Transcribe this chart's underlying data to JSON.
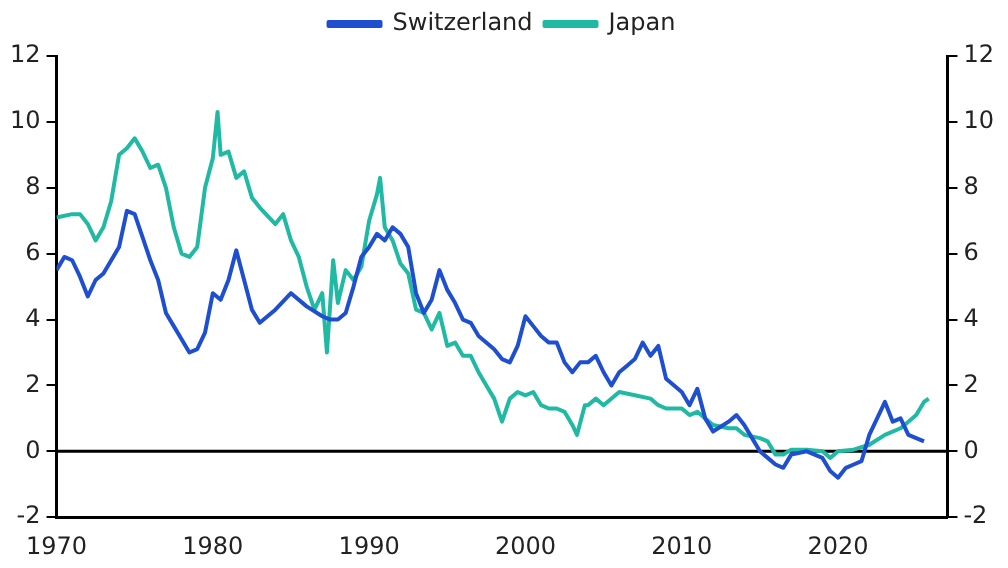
{
  "chart_data": {
    "type": "line",
    "legend": "top",
    "grid": false,
    "xlim": [
      1970,
      2027
    ],
    "xticks": [
      1970,
      1980,
      1990,
      2000,
      2010,
      2020
    ],
    "ylim": [
      -2,
      12
    ],
    "yticks": [
      -2,
      0,
      2,
      4,
      6,
      8,
      10,
      12
    ],
    "y2lim": [
      -2,
      12
    ],
    "y2ticks": [
      -2,
      0,
      2,
      4,
      6,
      8,
      10,
      12
    ],
    "ref_lines": [
      {
        "axis": "y",
        "value": 0,
        "color": "#000000"
      }
    ],
    "series": [
      {
        "name": "Switzerland",
        "color": "#1f4fd1",
        "x": [
          1970,
          1970.5,
          1971,
          1971.5,
          1972,
          1972.5,
          1973,
          1974,
          1974.5,
          1975,
          1975.5,
          1976,
          1976.5,
          1977,
          1977.5,
          1978,
          1978.5,
          1979,
          1979.5,
          1980,
          1980.5,
          1981,
          1981.5,
          1982,
          1982.5,
          1983,
          1983.5,
          1984,
          1985,
          1986,
          1987,
          1987.5,
          1988,
          1988.5,
          1989,
          1989.5,
          1990,
          1990.5,
          1991,
          1991.5,
          1992,
          1992.5,
          1993,
          1993.5,
          1994,
          1994.5,
          1995,
          1995.5,
          1996,
          1996.5,
          1997,
          1998,
          1998.5,
          1999,
          1999.5,
          2000,
          2000.5,
          2001,
          2001.5,
          2002,
          2002.5,
          2003,
          2003.5,
          2004,
          2004.5,
          2005,
          2005.5,
          2006,
          2006.5,
          2007,
          2007.5,
          2008,
          2008.5,
          2009,
          2010,
          2010.5,
          2011,
          2011.5,
          2012,
          2013,
          2013.5,
          2014,
          2014.5,
          2015,
          2015.5,
          2016,
          2016.5,
          2017,
          2018,
          2019,
          2019.5,
          2020,
          2020.5,
          2021,
          2021.5,
          2022,
          2022.5,
          2023,
          2023.5,
          2024,
          2024.5,
          2025,
          2025.5
        ],
        "values": [
          5.5,
          5.9,
          5.8,
          5.3,
          4.7,
          5.2,
          5.4,
          6.2,
          7.3,
          7.2,
          6.5,
          5.8,
          5.2,
          4.2,
          3.8,
          3.4,
          3.0,
          3.1,
          3.6,
          4.8,
          4.6,
          5.2,
          6.1,
          5.2,
          4.3,
          3.9,
          4.1,
          4.3,
          4.8,
          4.4,
          4.1,
          4.0,
          4.0,
          4.2,
          5.0,
          5.9,
          6.2,
          6.6,
          6.4,
          6.8,
          6.6,
          6.2,
          4.8,
          4.2,
          4.6,
          5.5,
          4.9,
          4.5,
          4.0,
          3.9,
          3.5,
          3.1,
          2.8,
          2.7,
          3.2,
          4.1,
          3.8,
          3.5,
          3.3,
          3.3,
          2.7,
          2.4,
          2.7,
          2.7,
          2.9,
          2.4,
          2.0,
          2.4,
          2.6,
          2.8,
          3.3,
          2.9,
          3.2,
          2.2,
          1.8,
          1.4,
          1.9,
          1.0,
          0.6,
          0.9,
          1.1,
          0.8,
          0.4,
          0.0,
          -0.2,
          -0.4,
          -0.5,
          -0.1,
          0.0,
          -0.2,
          -0.6,
          -0.8,
          -0.5,
          -0.4,
          -0.3,
          0.5,
          1.0,
          1.5,
          0.9,
          1.0,
          0.5,
          0.4,
          0.3
        ]
      },
      {
        "name": "Japan",
        "color": "#20b9a4",
        "x": [
          1970,
          1971,
          1971.5,
          1972,
          1972.5,
          1973,
          1973.5,
          1974,
          1974.5,
          1975,
          1975.5,
          1976,
          1976.5,
          1977,
          1977.5,
          1978,
          1978.5,
          1979,
          1979.5,
          1980,
          1980.3,
          1980.5,
          1981,
          1981.5,
          1982,
          1982.5,
          1983,
          1984,
          1984.5,
          1985,
          1985.5,
          1986,
          1986.5,
          1987,
          1987.3,
          1987.7,
          1988,
          1988.5,
          1989,
          1989.5,
          1990,
          1990.5,
          1990.7,
          1991,
          1991.5,
          1992,
          1992.5,
          1993,
          1993.5,
          1994,
          1994.5,
          1995,
          1995.5,
          1996,
          1996.5,
          1997,
          1997.5,
          1998,
          1998.5,
          1999,
          1999.5,
          2000,
          2000.5,
          2001,
          2001.5,
          2002,
          2002.5,
          2003,
          2003.3,
          2003.8,
          2004,
          2004.5,
          2005,
          2006,
          2007,
          2008,
          2008.5,
          2009,
          2010,
          2010.5,
          2011,
          2012,
          2013,
          2013.5,
          2014,
          2015,
          2015.5,
          2016,
          2016.5,
          2017,
          2018,
          2019,
          2019.5,
          2020,
          2021,
          2022,
          2023,
          2024,
          2024.5,
          2025,
          2025.5,
          2025.8
        ],
        "values": [
          7.1,
          7.2,
          7.2,
          6.9,
          6.4,
          6.8,
          7.6,
          9.0,
          9.2,
          9.5,
          9.1,
          8.6,
          8.7,
          8.0,
          6.8,
          6.0,
          5.9,
          6.2,
          8.0,
          8.9,
          10.3,
          9.0,
          9.1,
          8.3,
          8.5,
          7.7,
          7.4,
          6.9,
          7.2,
          6.4,
          5.9,
          5.0,
          4.3,
          4.8,
          3.0,
          5.8,
          4.5,
          5.5,
          5.2,
          5.6,
          7.0,
          7.8,
          8.3,
          6.8,
          6.4,
          5.7,
          5.4,
          4.3,
          4.2,
          3.7,
          4.2,
          3.2,
          3.3,
          2.9,
          2.9,
          2.4,
          2.0,
          1.6,
          0.9,
          1.6,
          1.8,
          1.7,
          1.8,
          1.4,
          1.3,
          1.3,
          1.2,
          0.8,
          0.5,
          1.4,
          1.4,
          1.6,
          1.4,
          1.8,
          1.7,
          1.6,
          1.4,
          1.3,
          1.3,
          1.1,
          1.2,
          0.8,
          0.7,
          0.7,
          0.5,
          0.4,
          0.3,
          -0.1,
          -0.1,
          0.05,
          0.05,
          0.0,
          -0.2,
          0.0,
          0.05,
          0.2,
          0.5,
          0.7,
          0.9,
          1.1,
          1.5,
          1.6
        ]
      }
    ]
  }
}
